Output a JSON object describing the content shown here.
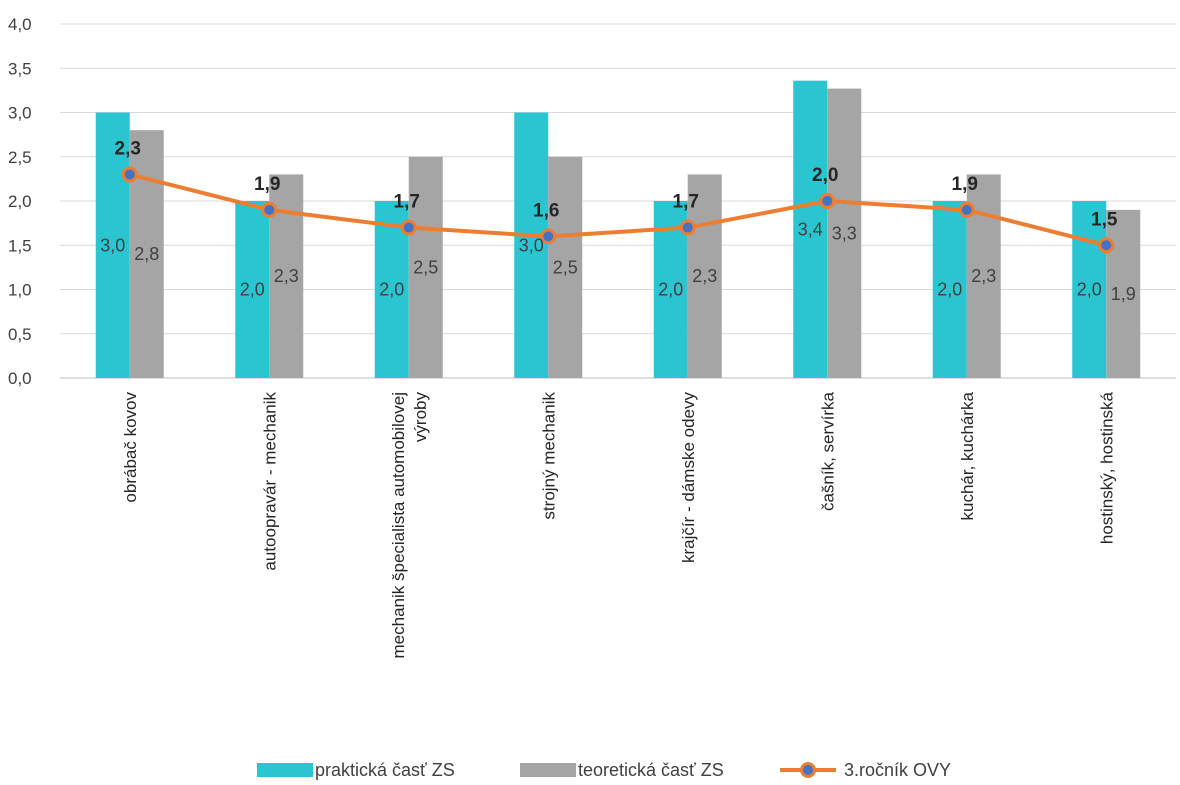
{
  "chart_data": {
    "type": "bar",
    "categories": [
      "obrábač kovov",
      "autoopravár - mechanik",
      "mechanik špecialista automobilovej výroby",
      "strojný mechanik",
      "krajčír - dámske odevy",
      "čašník, servírka",
      "kuchár, kuchárka",
      "hostinský, hostinská"
    ],
    "category_lines": [
      [
        "obrábač kovov"
      ],
      [
        "autoopravár - mechanik"
      ],
      [
        "mechanik špecialista automobilovej",
        "výroby"
      ],
      [
        "strojný mechanik"
      ],
      [
        "krajčír - dámske odevy"
      ],
      [
        "čašník, servírka"
      ],
      [
        "kuchár, kuchárka"
      ],
      [
        "hostinský, hostinská"
      ]
    ],
    "series": [
      {
        "name": "praktická časť ZS",
        "type": "bar",
        "color": "#2BC5D2",
        "values": [
          3.0,
          2.0,
          2.0,
          3.0,
          2.0,
          3.36,
          2.0,
          2.0
        ],
        "labels": [
          "3,0",
          "2,0",
          "2,0",
          "3,0",
          "2,0",
          "3,4",
          "2,0",
          "2,0"
        ]
      },
      {
        "name": "teoretická časť ZS",
        "type": "bar",
        "color": "#A5A5A5",
        "values": [
          2.8,
          2.3,
          2.5,
          2.5,
          2.3,
          3.27,
          2.3,
          1.9
        ],
        "labels": [
          "2,8",
          "2,3",
          "2,5",
          "2,5",
          "2,3",
          "3,3",
          "2,3",
          "1,9"
        ]
      },
      {
        "name": "3.ročník OVY",
        "type": "line",
        "color": "#ED7D31",
        "marker_fill": "#4472C4",
        "values": [
          2.3,
          1.9,
          1.7,
          1.6,
          1.7,
          2.0,
          1.9,
          1.5
        ],
        "labels": [
          "2,3",
          "1,9",
          "1,7",
          "1,6",
          "1,7",
          "2,0",
          "1,9",
          "1,5"
        ]
      }
    ],
    "ylim": [
      0,
      4.0
    ],
    "yticks": [
      "0,0",
      "0,5",
      "1,0",
      "1,5",
      "2,0",
      "2,5",
      "3,0",
      "3,5",
      "4,0"
    ],
    "title": "",
    "xlabel": "",
    "ylabel": "",
    "grid": true,
    "legend_position": "bottom"
  }
}
